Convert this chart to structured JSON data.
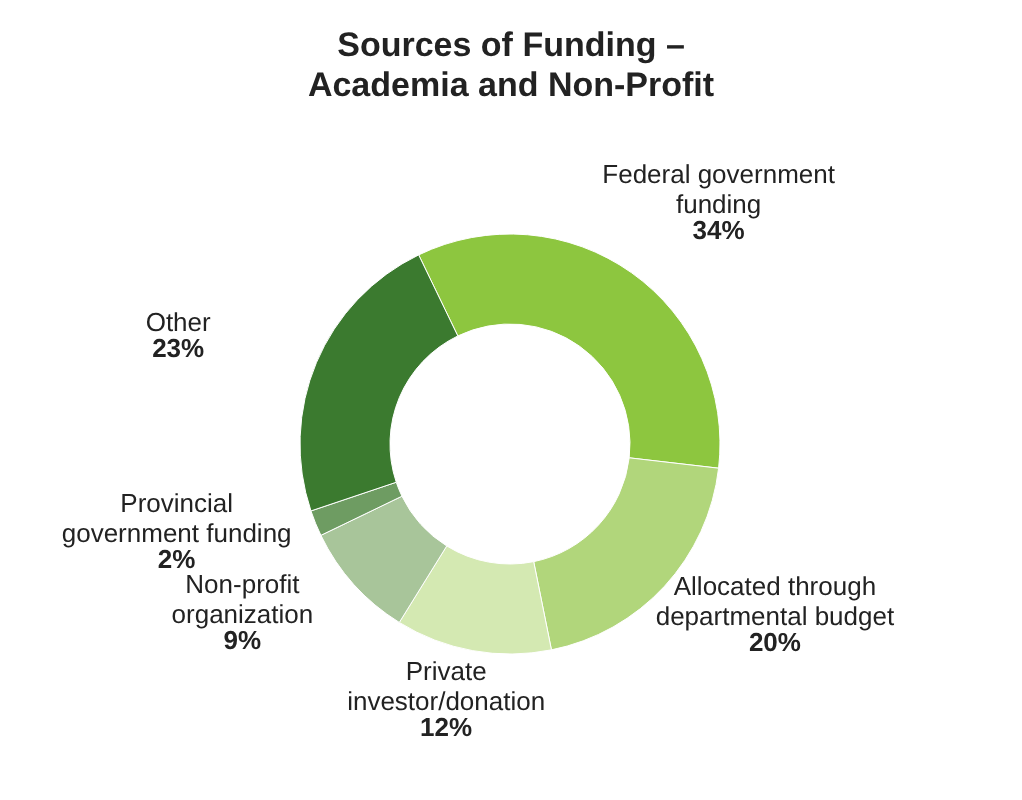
{
  "chart_data": {
    "type": "donut",
    "title": "Sources of Funding – Academia and Non-Profit",
    "categories": [
      "Federal government funding",
      "Allocated through departmental budget",
      "Private investor/donation",
      "Non-profit organization",
      "Provincial government funding",
      "Other"
    ],
    "values": [
      34,
      20,
      12,
      9,
      2,
      23
    ],
    "colors": [
      "#8dc63f",
      "#b1d67b",
      "#d4e9b2",
      "#a8c59a",
      "#6e9c62",
      "#3b7a2f"
    ],
    "value_labels": [
      "34%",
      "20%",
      "12%",
      "9%",
      "2%",
      "23%"
    ]
  }
}
